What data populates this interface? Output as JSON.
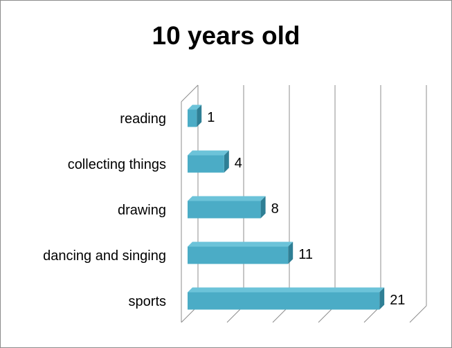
{
  "chart_data": {
    "type": "bar",
    "orientation": "horizontal",
    "title": "10 years old",
    "xlabel": "",
    "ylabel": "",
    "categories": [
      "reading",
      "collecting things",
      "drawing",
      "dancing and singing",
      "sports"
    ],
    "values": [
      1,
      4,
      8,
      11,
      21
    ],
    "xlim": [
      0,
      25
    ],
    "grid": true,
    "data_labels": true,
    "legend": "none",
    "colors": {
      "bar_front": "#4BACC6",
      "bar_top": "#6CC3D9",
      "bar_side": "#2F7F95",
      "grid": "#8c8c8c"
    }
  }
}
